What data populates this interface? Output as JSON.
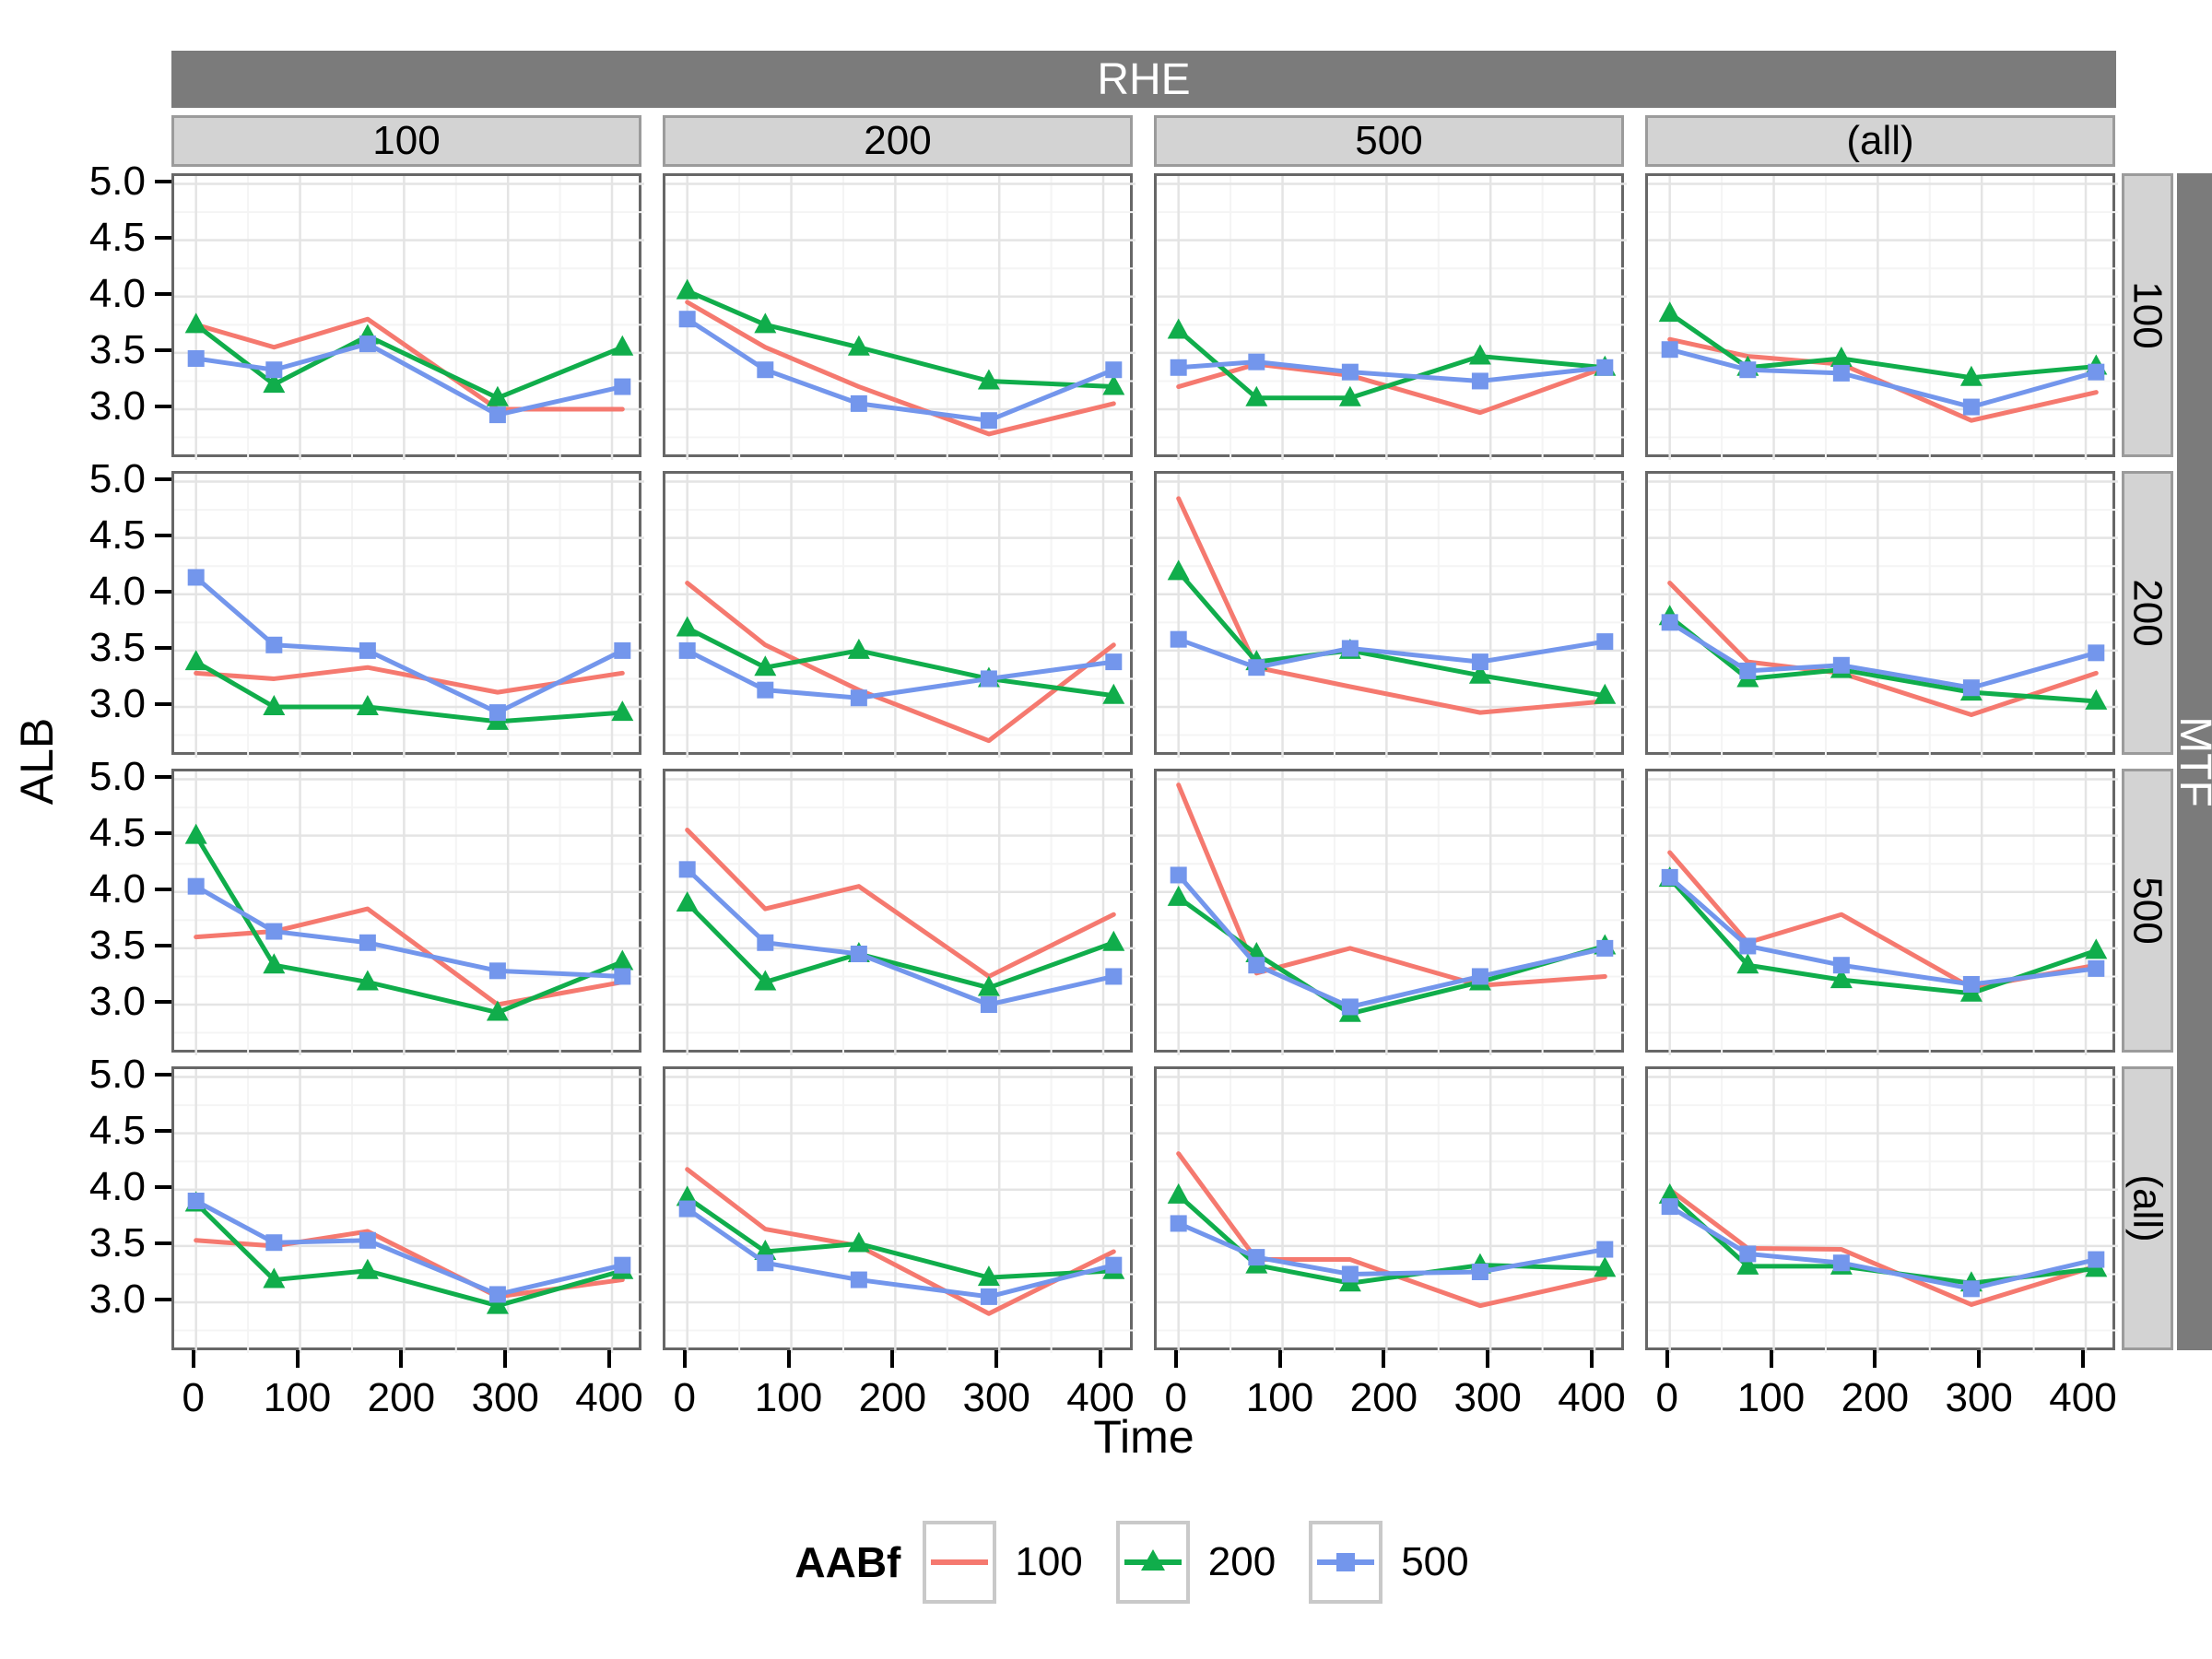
{
  "facet": {
    "top_strip": "RHE",
    "right_strip": "MTF",
    "col_labels": [
      "100",
      "200",
      "500",
      "(all)"
    ],
    "row_labels": [
      "100",
      "200",
      "500",
      "(all)"
    ]
  },
  "axes": {
    "x_label": "Time",
    "y_label": "ALB",
    "x_tick_labels": [
      "0",
      "100",
      "200",
      "300",
      "400"
    ],
    "x_tick_values": [
      0,
      100,
      200,
      300,
      400
    ],
    "y_tick_labels": [
      "5.0",
      "4.5",
      "4.0",
      "3.5",
      "3.0"
    ],
    "y_tick_values": [
      5.0,
      4.5,
      4.0,
      3.5,
      3.0
    ],
    "x_domain": [
      -21,
      431
    ],
    "y_domain": [
      2.55,
      5.07
    ]
  },
  "legend": {
    "title": "AABf",
    "entries": [
      {
        "label": "100",
        "color": "#F5796F",
        "marker": "line"
      },
      {
        "label": "200",
        "color": "#10AD4B",
        "marker": "triangle"
      },
      {
        "label": "500",
        "color": "#7396EC",
        "marker": "square"
      }
    ]
  },
  "colors": {
    "strip_dark_bg": "#7B7B7B",
    "strip_dark_text": "#FFFFFF",
    "strip_light_bg": "#D3D3D3",
    "panel_border": "#676767",
    "grid_major": "#E4E4E4",
    "grid_minor": "#F4F4F4",
    "series": {
      "100": "#F5796F",
      "200": "#10AD4B",
      "500": "#7396EC"
    }
  },
  "chart_data": {
    "type": "line",
    "title": "",
    "xlabel": "Time",
    "ylabel": "ALB",
    "facet_col_label": "RHE",
    "facet_row_label": "MTF",
    "series_group": "AABf",
    "grid": true,
    "legend_position": "bottom",
    "x": [
      0,
      75,
      165,
      290,
      410
    ],
    "x_ticks": [
      0,
      100,
      200,
      300,
      400
    ],
    "ylim": [
      2.55,
      5.07
    ],
    "rows": [
      "100",
      "200",
      "500",
      "(all)"
    ],
    "cols": [
      "100",
      "200",
      "500",
      "(all)"
    ],
    "panels": [
      {
        "mtf": "100",
        "rhe": "100",
        "series": [
          {
            "name": "100",
            "values": [
              3.75,
              3.55,
              3.8,
              3.0,
              3.0
            ]
          },
          {
            "name": "200",
            "values": [
              3.75,
              3.22,
              3.65,
              3.1,
              3.55
            ]
          },
          {
            "name": "500",
            "values": [
              3.45,
              3.35,
              3.58,
              2.95,
              3.2
            ]
          }
        ]
      },
      {
        "mtf": "100",
        "rhe": "200",
        "series": [
          {
            "name": "100",
            "values": [
              3.95,
              3.55,
              3.2,
              2.78,
              3.05
            ]
          },
          {
            "name": "200",
            "values": [
              4.05,
              3.75,
              3.55,
              3.25,
              3.2
            ]
          },
          {
            "name": "500",
            "values": [
              3.8,
              3.35,
              3.05,
              2.9,
              3.35
            ]
          }
        ]
      },
      {
        "mtf": "100",
        "rhe": "500",
        "series": [
          {
            "name": "100",
            "values": [
              3.2,
              3.4,
              3.3,
              2.97,
              3.37
            ]
          },
          {
            "name": "200",
            "values": [
              3.7,
              3.1,
              3.1,
              3.47,
              3.37
            ]
          },
          {
            "name": "500",
            "values": [
              3.37,
              3.42,
              3.33,
              3.25,
              3.37
            ]
          }
        ]
      },
      {
        "mtf": "100",
        "rhe": "(all)",
        "series": [
          {
            "name": "100",
            "values": [
              3.62,
              3.47,
              3.4,
              2.9,
              3.15
            ]
          },
          {
            "name": "200",
            "values": [
              3.85,
              3.37,
              3.45,
              3.28,
              3.38
            ]
          },
          {
            "name": "500",
            "values": [
              3.53,
              3.35,
              3.32,
              3.02,
              3.33
            ]
          }
        ]
      },
      {
        "mtf": "200",
        "rhe": "100",
        "series": [
          {
            "name": "100",
            "values": [
              3.3,
              3.25,
              3.35,
              3.13,
              3.3
            ]
          },
          {
            "name": "200",
            "values": [
              3.4,
              3.0,
              3.0,
              2.87,
              2.95
            ]
          },
          {
            "name": "500",
            "values": [
              4.15,
              3.55,
              3.5,
              2.95,
              3.5
            ]
          }
        ]
      },
      {
        "mtf": "200",
        "rhe": "200",
        "series": [
          {
            "name": "100",
            "values": [
              4.1,
              3.55,
              3.15,
              2.7,
              3.55
            ]
          },
          {
            "name": "200",
            "values": [
              3.7,
              3.35,
              3.5,
              3.25,
              3.1
            ]
          },
          {
            "name": "500",
            "values": [
              3.5,
              3.15,
              3.08,
              3.25,
              3.4
            ]
          }
        ]
      },
      {
        "mtf": "200",
        "rhe": "500",
        "series": [
          {
            "name": "100",
            "values": [
              4.85,
              3.35,
              3.18,
              2.95,
              3.05
            ]
          },
          {
            "name": "200",
            "values": [
              4.2,
              3.4,
              3.5,
              3.28,
              3.1
            ]
          },
          {
            "name": "500",
            "values": [
              3.6,
              3.35,
              3.52,
              3.4,
              3.58
            ]
          }
        ]
      },
      {
        "mtf": "200",
        "rhe": "(all)",
        "series": [
          {
            "name": "100",
            "values": [
              4.1,
              3.4,
              3.3,
              2.93,
              3.3
            ]
          },
          {
            "name": "200",
            "values": [
              3.8,
              3.25,
              3.33,
              3.13,
              3.05
            ]
          },
          {
            "name": "500",
            "values": [
              3.75,
              3.32,
              3.37,
              3.17,
              3.48
            ]
          }
        ]
      },
      {
        "mtf": "500",
        "rhe": "100",
        "series": [
          {
            "name": "100",
            "values": [
              3.6,
              3.65,
              3.85,
              3.0,
              3.2
            ]
          },
          {
            "name": "200",
            "values": [
              4.5,
              3.35,
              3.2,
              2.93,
              3.38
            ]
          },
          {
            "name": "500",
            "values": [
              4.05,
              3.65,
              3.55,
              3.3,
              3.25
            ]
          }
        ]
      },
      {
        "mtf": "500",
        "rhe": "200",
        "series": [
          {
            "name": "100",
            "values": [
              4.55,
              3.85,
              4.05,
              3.25,
              3.8
            ]
          },
          {
            "name": "200",
            "values": [
              3.9,
              3.2,
              3.45,
              3.15,
              3.55
            ]
          },
          {
            "name": "500",
            "values": [
              4.2,
              3.55,
              3.45,
              3.0,
              3.25
            ]
          }
        ]
      },
      {
        "mtf": "500",
        "rhe": "500",
        "series": [
          {
            "name": "100",
            "values": [
              4.95,
              3.28,
              3.5,
              3.17,
              3.25
            ]
          },
          {
            "name": "200",
            "values": [
              3.95,
              3.45,
              2.92,
              3.2,
              3.52
            ]
          },
          {
            "name": "500",
            "values": [
              4.15,
              3.35,
              2.98,
              3.25,
              3.5
            ]
          }
        ]
      },
      {
        "mtf": "500",
        "rhe": "(all)",
        "series": [
          {
            "name": "100",
            "values": [
              4.35,
              3.55,
              3.8,
              3.15,
              3.35
            ]
          },
          {
            "name": "200",
            "values": [
              4.12,
              3.35,
              3.22,
              3.1,
              3.48
            ]
          },
          {
            "name": "500",
            "values": [
              4.13,
              3.52,
              3.35,
              3.18,
              3.32
            ]
          }
        ]
      },
      {
        "mtf": "(all)",
        "rhe": "100",
        "series": [
          {
            "name": "100",
            "values": [
              3.55,
              3.5,
              3.63,
              3.05,
              3.2
            ]
          },
          {
            "name": "200",
            "values": [
              3.88,
              3.2,
              3.28,
              2.97,
              3.28
            ]
          },
          {
            "name": "500",
            "values": [
              3.9,
              3.53,
              3.55,
              3.07,
              3.33
            ]
          }
        ]
      },
      {
        "mtf": "(all)",
        "rhe": "200",
        "series": [
          {
            "name": "100",
            "values": [
              4.18,
              3.65,
              3.5,
              2.9,
              3.45
            ]
          },
          {
            "name": "200",
            "values": [
              3.93,
              3.45,
              3.52,
              3.22,
              3.28
            ]
          },
          {
            "name": "500",
            "values": [
              3.83,
              3.35,
              3.2,
              3.05,
              3.33
            ]
          }
        ]
      },
      {
        "mtf": "(all)",
        "rhe": "500",
        "series": [
          {
            "name": "100",
            "values": [
              4.32,
              3.38,
              3.38,
              2.97,
              3.22
            ]
          },
          {
            "name": "200",
            "values": [
              3.95,
              3.33,
              3.17,
              3.33,
              3.3
            ]
          },
          {
            "name": "500",
            "values": [
              3.7,
              3.4,
              3.25,
              3.27,
              3.47
            ]
          }
        ]
      },
      {
        "mtf": "(all)",
        "rhe": "(all)",
        "series": [
          {
            "name": "100",
            "values": [
              4.0,
              3.48,
              3.47,
              2.98,
              3.32
            ]
          },
          {
            "name": "200",
            "values": [
              3.95,
              3.32,
              3.32,
              3.17,
              3.3
            ]
          },
          {
            "name": "500",
            "values": [
              3.85,
              3.43,
              3.35,
              3.12,
              3.38
            ]
          }
        ]
      }
    ]
  }
}
